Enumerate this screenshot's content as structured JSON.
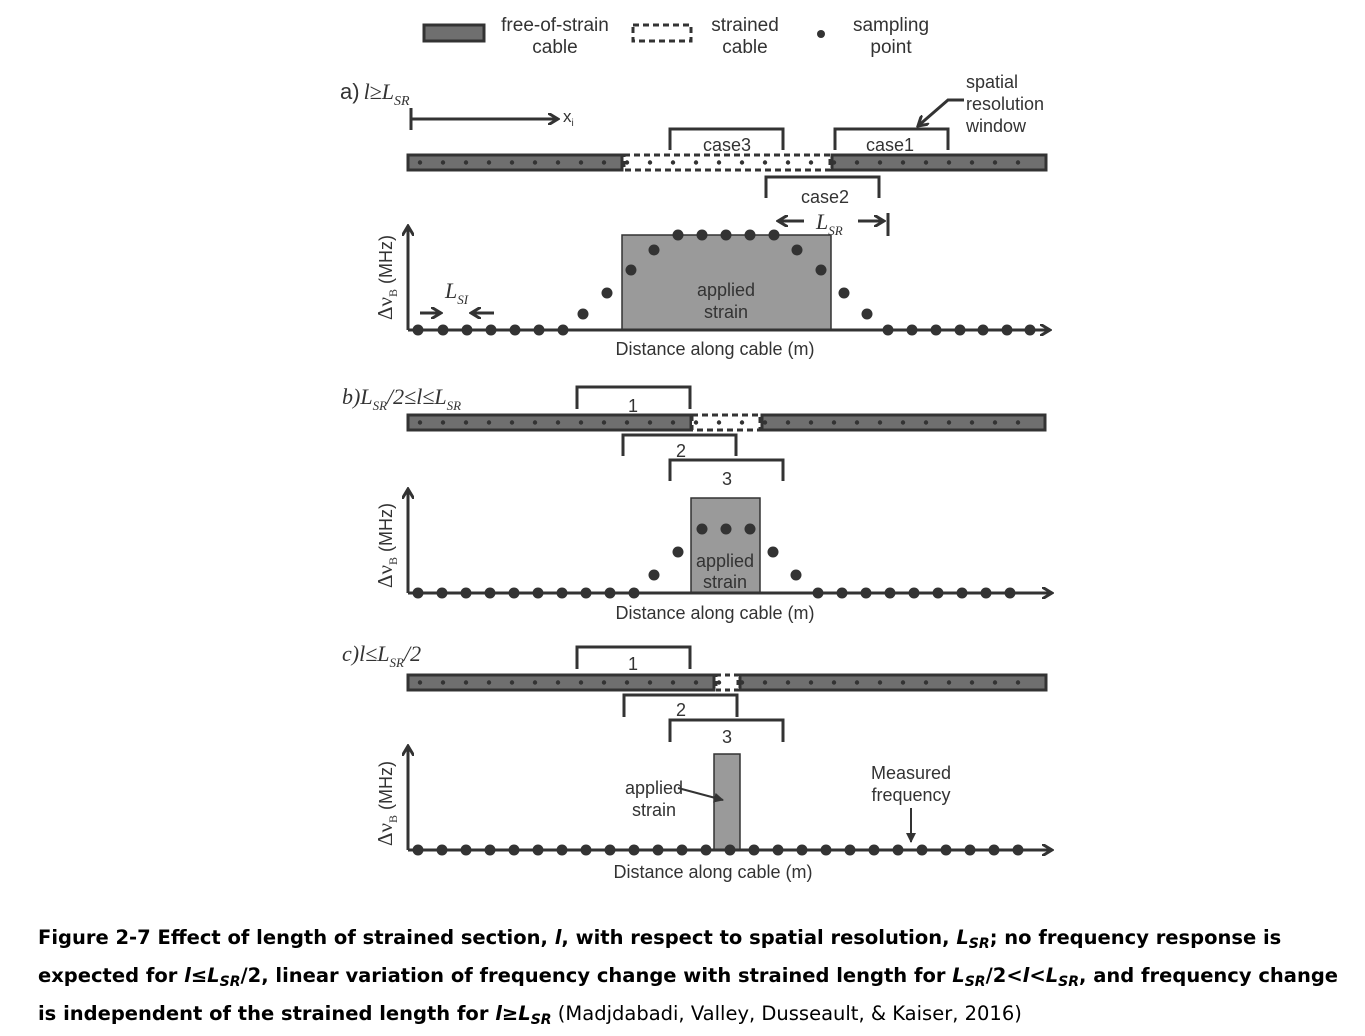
{
  "legend": {
    "free_label_1": "free-of-strain",
    "free_label_2": "cable",
    "strained_label_1": "strained",
    "strained_label_2": "cable",
    "sampling_label_1": "sampling",
    "sampling_label_2": "point"
  },
  "panel_a": {
    "letter": "a)",
    "cond_main": "l≥L",
    "cond_sub": "SR",
    "xi_main": "x",
    "xi_sub": "i",
    "case3": "case3",
    "case1": "case1",
    "case2": "case2",
    "window_label_1": "spatial",
    "window_label_2": "resolution",
    "window_label_3": "window",
    "lsr_main": "L",
    "lsr_sub": "SR",
    "lsi_main": "L",
    "lsi_sub": "SI",
    "applied_1": "applied",
    "applied_2": "strain",
    "yaxis": "Δν (MHz)",
    "xaxis": "Distance along cable (m)"
  },
  "panel_b": {
    "cond_prefix": "b)L",
    "cond_sub1": "SR",
    "cond_mid": "/2≤l≤L",
    "cond_sub2": "SR",
    "w1": "1",
    "w2": "2",
    "w3": "3",
    "applied_1": "applied",
    "applied_2": "strain",
    "yaxis": "Δν (MHz)",
    "xaxis": "Distance along cable (m)"
  },
  "panel_c": {
    "cond_prefix": "c)l≤L",
    "cond_sub": "SR",
    "cond_suffix": "/2",
    "w1": "1",
    "w2": "2",
    "w3": "3",
    "applied_1": "applied",
    "applied_2": "strain",
    "measured_1": "Measured",
    "measured_2": "frequency",
    "yaxis": "Δν (MHz)",
    "xaxis": "Distance along cable (m)"
  },
  "caption": {
    "t1": "Figure 2-7   Effect of length of strained section, ",
    "t2": "l",
    "t3": ", with respect to spatial resolution, ",
    "t4": "L",
    "t5": "SR",
    "t6": "; no frequency response is expected for ",
    "t7": "l≤L",
    "t8": "SR",
    "t9": "/2, linear variation of frequency change with strained length for ",
    "t10": "L",
    "t11": "SR",
    "t12": "/2<",
    "t13": "l",
    "t14": "<",
    "t15": "L",
    "t16": "SR",
    "t17": ", and frequency change is independent of the strained length for ",
    "t18": "l≥L",
    "t19": "SR",
    "t20": " (Madjdabadi, Valley, Dusseault, & Kaiser, 2016)"
  },
  "colors": {
    "cable_fill": "#6f6f6f",
    "strain_fill": "#9a9a9a",
    "ink": "#333333"
  }
}
